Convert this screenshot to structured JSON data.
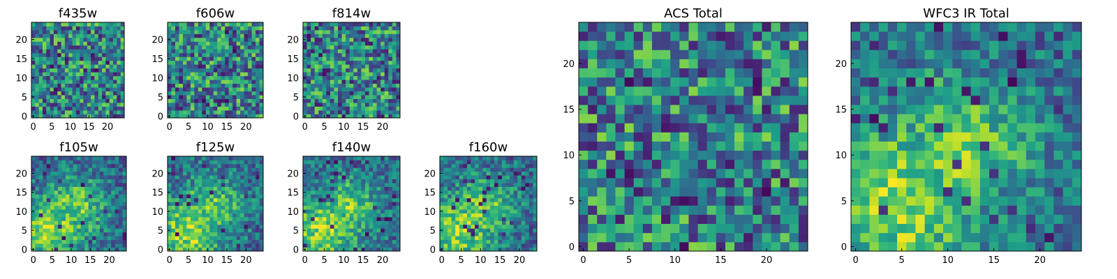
{
  "chart_data": [
    {
      "type": "heatmap",
      "title": "f435w",
      "xticks": [
        0,
        5,
        10,
        15,
        20
      ],
      "yticks": [
        0,
        5,
        10,
        15,
        20
      ],
      "xlim": [
        -0.5,
        24.5
      ],
      "ylim": [
        -0.5,
        24.5
      ],
      "grid_size": 25,
      "colormap": "viridis",
      "pattern": "uniform-noise"
    },
    {
      "type": "heatmap",
      "title": "f606w",
      "xticks": [
        0,
        5,
        10,
        15,
        20
      ],
      "yticks": [
        0,
        5,
        10,
        15,
        20
      ],
      "xlim": [
        -0.5,
        24.5
      ],
      "ylim": [
        -0.5,
        24.5
      ],
      "grid_size": 25,
      "colormap": "viridis",
      "pattern": "uniform-noise"
    },
    {
      "type": "heatmap",
      "title": "f814w",
      "xticks": [
        0,
        5,
        10,
        15,
        20
      ],
      "yticks": [
        0,
        5,
        10,
        15,
        20
      ],
      "xlim": [
        -0.5,
        24.5
      ],
      "ylim": [
        -0.5,
        24.5
      ],
      "grid_size": 25,
      "colormap": "viridis",
      "pattern": "uniform-noise"
    },
    {
      "type": "heatmap",
      "title": "f105w",
      "xticks": [
        0,
        5,
        10,
        15,
        20
      ],
      "yticks": [
        0,
        5,
        10,
        15,
        20
      ],
      "xlim": [
        -0.5,
        24.5
      ],
      "ylim": [
        -0.5,
        24.5
      ],
      "grid_size": 25,
      "colormap": "viridis",
      "pattern": "bright-blob-lower-left"
    },
    {
      "type": "heatmap",
      "title": "f125w",
      "xticks": [
        0,
        5,
        10,
        15,
        20
      ],
      "yticks": [
        0,
        5,
        10,
        15,
        20
      ],
      "xlim": [
        -0.5,
        24.5
      ],
      "ylim": [
        -0.5,
        24.5
      ],
      "grid_size": 25,
      "colormap": "viridis",
      "pattern": "bright-blob-lower-left"
    },
    {
      "type": "heatmap",
      "title": "f140w",
      "xticks": [
        0,
        5,
        10,
        15,
        20
      ],
      "yticks": [
        0,
        5,
        10,
        15,
        20
      ],
      "xlim": [
        -0.5,
        24.5
      ],
      "ylim": [
        -0.5,
        24.5
      ],
      "grid_size": 25,
      "colormap": "viridis",
      "pattern": "bright-blob-lower-left"
    },
    {
      "type": "heatmap",
      "title": "f160w",
      "xticks": [
        0,
        5,
        10,
        15,
        20
      ],
      "yticks": [
        0,
        5,
        10,
        15,
        20
      ],
      "xlim": [
        -0.5,
        24.5
      ],
      "ylim": [
        -0.5,
        24.5
      ],
      "grid_size": 25,
      "colormap": "viridis",
      "pattern": "bright-blob-lower-left"
    },
    {
      "type": "heatmap",
      "title": "ACS Total",
      "xticks": [
        0,
        5,
        10,
        15,
        20
      ],
      "yticks": [
        0,
        5,
        10,
        15,
        20
      ],
      "xlim": [
        -0.5,
        24.5
      ],
      "ylim": [
        -0.5,
        24.5
      ],
      "grid_size": 25,
      "colormap": "viridis",
      "pattern": "uniform-noise"
    },
    {
      "type": "heatmap",
      "title": "WFC3 IR Total",
      "xticks": [
        0,
        5,
        10,
        15,
        20
      ],
      "yticks": [
        0,
        5,
        10,
        15,
        20
      ],
      "xlim": [
        -0.5,
        24.5
      ],
      "ylim": [
        -0.5,
        24.5
      ],
      "grid_size": 25,
      "colormap": "viridis",
      "pattern": "bright-blob-lower-left"
    }
  ]
}
